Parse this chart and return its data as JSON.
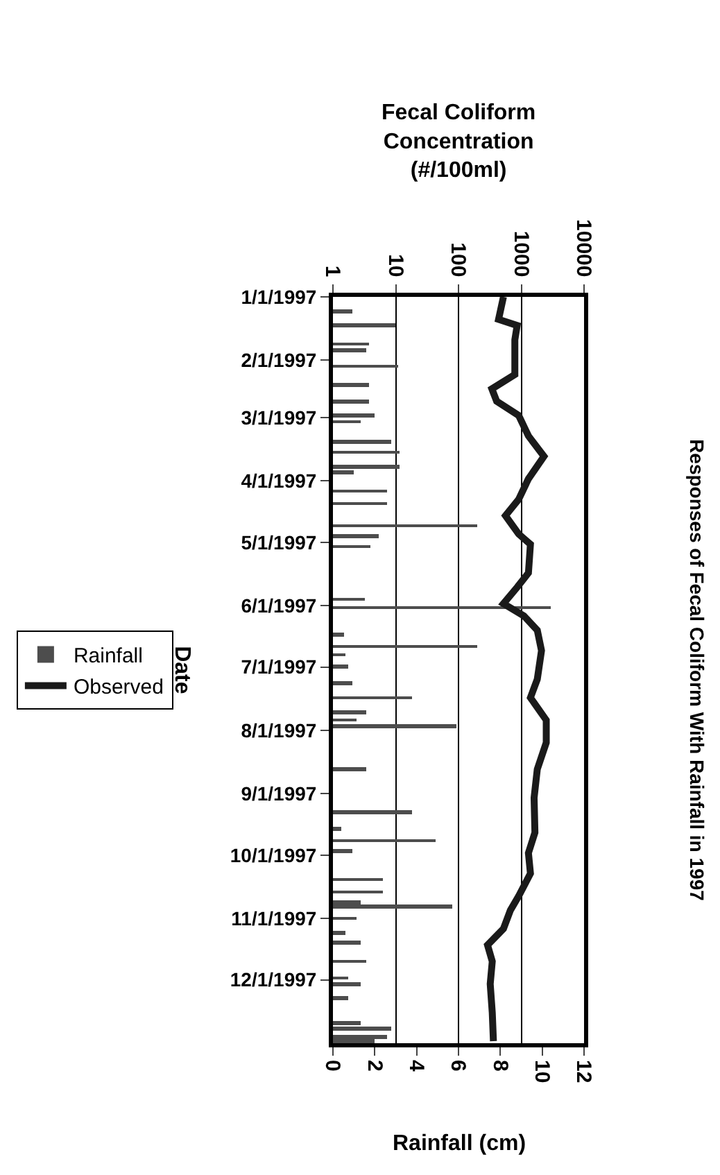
{
  "chart_data": {
    "type": "bar",
    "orientation": "horizontal",
    "title": "Responses of Fecal Coliform With Rainfall in 1997",
    "xlabel": "Rainfall (cm)",
    "x2label": "Fecal Coliform Concentration (#/100ml)",
    "ylabel": "Date",
    "xlim": [
      0,
      12
    ],
    "xticks": [
      0,
      2,
      4,
      6,
      8,
      10,
      12
    ],
    "x2lim": [
      1,
      10000
    ],
    "x2ticks": [
      1,
      10,
      100,
      1000,
      10000
    ],
    "log": "x2",
    "ylim": [
      "1998-01-01",
      "1997-01-01"
    ],
    "yticks": [
      {
        "value": "1997-01-01",
        "label": "1/1/1997"
      },
      {
        "value": "1997-02-01",
        "label": "2/1/1997"
      },
      {
        "value": "1997-03-01",
        "label": "3/1/1997"
      },
      {
        "value": "1997-04-01",
        "label": "4/1/1997"
      },
      {
        "value": "1997-05-01",
        "label": "5/1/1997"
      },
      {
        "value": "1997-06-01",
        "label": "6/1/1997"
      },
      {
        "value": "1997-07-01",
        "label": "7/1/1997"
      },
      {
        "value": "1997-08-01",
        "label": "8/1/1997"
      },
      {
        "value": "1997-09-01",
        "label": "9/1/1997"
      },
      {
        "value": "1997-10-01",
        "label": "10/1/1997"
      },
      {
        "value": "1997-11-01",
        "label": "11/1/1997"
      },
      {
        "value": "1997-12-01",
        "label": "12/1/1997"
      }
    ],
    "grid": "x",
    "legend": "left",
    "series": [
      {
        "name": "Rainfall",
        "color": "#4d4d4d",
        "x": [
          "1997-01-08",
          "1997-01-15",
          "1997-01-24",
          "1997-01-27",
          "1997-02-04",
          "1997-02-13",
          "1997-02-21",
          "1997-02-28",
          "1997-03-03",
          "1997-03-13",
          "1997-03-18",
          "1997-03-25",
          "1997-03-28",
          "1997-04-06",
          "1997-04-12",
          "1997-04-23",
          "1997-04-28",
          "1997-05-03",
          "1997-05-29",
          "1997-06-02",
          "1997-06-15",
          "1997-06-21",
          "1997-06-25",
          "1997-07-01",
          "1997-07-09",
          "1997-07-16",
          "1997-07-23",
          "1997-07-27",
          "1997-07-30",
          "1997-08-20",
          "1997-09-10",
          "1997-09-18",
          "1997-09-24",
          "1997-09-29",
          "1997-10-13",
          "1997-10-19",
          "1997-10-24",
          "1997-10-26",
          "1997-11-01",
          "1997-11-08",
          "1997-11-13",
          "1997-11-22",
          "1997-11-30",
          "1997-12-03",
          "1997-12-10",
          "1997-12-22",
          "1997-12-25",
          "1997-12-29",
          "1997-12-31"
        ],
        "values": [
          0.9,
          3.0,
          1.7,
          1.6,
          3.1,
          1.7,
          1.7,
          2.0,
          1.3,
          2.8,
          3.2,
          3.2,
          1.0,
          2.6,
          2.6,
          6.9,
          2.2,
          1.8,
          1.5,
          10.4,
          0.5,
          6.9,
          0.6,
          0.7,
          0.9,
          3.8,
          1.6,
          1.1,
          5.9,
          1.6,
          3.8,
          0.4,
          4.9,
          0.9,
          2.4,
          2.4,
          1.3,
          5.7,
          1.1,
          0.6,
          1.3,
          1.6,
          0.7,
          1.3,
          0.7,
          1.3,
          2.8,
          2.6,
          2.0
        ]
      },
      {
        "name": "Observed",
        "type": "line",
        "axis": "x2",
        "color": "#1a1a1a",
        "x": [
          "1997-01-01",
          "1997-01-12",
          "1997-01-15",
          "1997-01-22",
          "1997-02-08",
          "1997-02-15",
          "1997-02-21",
          "1997-02-28",
          "1997-03-10",
          "1997-03-20",
          "1997-03-31",
          "1997-04-10",
          "1997-04-18",
          "1997-04-27",
          "1997-05-02",
          "1997-05-16",
          "1997-05-23",
          "1997-05-31",
          "1997-06-06",
          "1997-06-13",
          "1997-06-23",
          "1997-07-07",
          "1997-07-16",
          "1997-07-27",
          "1997-08-07",
          "1997-08-20",
          "1997-09-03",
          "1997-09-20",
          "1997-09-30",
          "1997-10-10",
          "1997-10-21",
          "1997-10-28",
          "1997-11-06",
          "1997-11-14",
          "1997-11-22",
          "1997-12-03",
          "1997-12-17",
          "1997-12-31"
        ],
        "values": [
          520,
          435,
          860,
          790,
          790,
          340,
          405,
          910,
          1300,
          2300,
          1300,
          910,
          560,
          910,
          1400,
          1300,
          860,
          520,
          1100,
          1800,
          2100,
          1800,
          1400,
          2500,
          2500,
          1800,
          1600,
          1650,
          1300,
          1400,
          910,
          670,
          520,
          290,
          345,
          320,
          345,
          360
        ]
      }
    ]
  }
}
